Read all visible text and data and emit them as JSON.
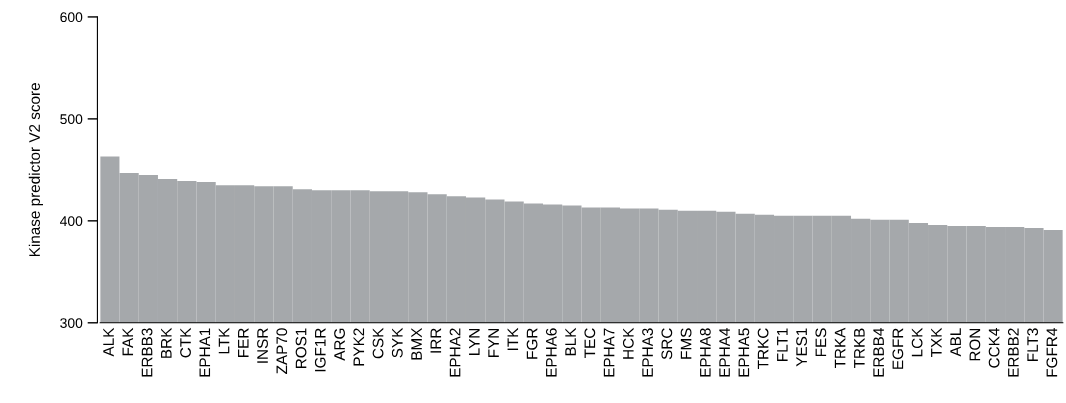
{
  "chart_data": {
    "type": "bar",
    "ylabel": "Kinase predictor V2 score",
    "categories": [
      "ALK",
      "FAK",
      "ERBB3",
      "BRK",
      "CTK",
      "EPHA1",
      "LTK",
      "FER",
      "INSR",
      "ZAP70",
      "ROS1",
      "IGF1R",
      "ARG",
      "PYK2",
      "CSK",
      "SYK",
      "BMX",
      "IRR",
      "EPHA2",
      "LYN",
      "FYN",
      "ITK",
      "FGR",
      "EPHA6",
      "BLK",
      "TEC",
      "EPHA7",
      "HCK",
      "EPHA3",
      "SRC",
      "FMS",
      "EPHA8",
      "EPHA4",
      "EPHA5",
      "TRKC",
      "FLT1",
      "YES1",
      "FES",
      "TRKA",
      "TRKB",
      "ERBB4",
      "EGFR",
      "LCK",
      "TXK",
      "ABL",
      "RON",
      "CCK4",
      "ERBB2",
      "FLT3",
      "FGFR4"
    ],
    "values": [
      463,
      447,
      445,
      441,
      439,
      438,
      435,
      435,
      434,
      434,
      431,
      430,
      430,
      430,
      429,
      429,
      428,
      426,
      424,
      423,
      421,
      419,
      417,
      416,
      415,
      413,
      413,
      412,
      412,
      411,
      410,
      410,
      409,
      407,
      406,
      405,
      405,
      405,
      405,
      402,
      401,
      401,
      398,
      396,
      395,
      395,
      394,
      394,
      393,
      391
    ],
    "color": "#a5a8ab",
    "ylim": [
      300,
      600
    ],
    "yticks": [
      300,
      400,
      500,
      600
    ],
    "grid": false,
    "legend": false
  }
}
